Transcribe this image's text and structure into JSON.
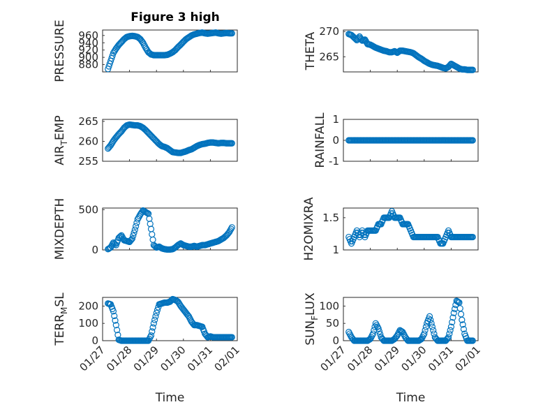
{
  "figure_title": "Figure 3 high",
  "colors": {
    "marker": "#0072BD",
    "axis": "#262626",
    "grid": "#d9d9d9"
  },
  "chart_data": [
    {
      "id": "pressure",
      "type": "scatter",
      "title": "Figure 3 high",
      "ylabel": {
        "main": "PRESSURE",
        "sub": "",
        "rest": ""
      },
      "ylim": [
        860,
        975
      ],
      "yticks": [
        880,
        900,
        920,
        940,
        960
      ],
      "xlim": [
        0,
        5
      ],
      "xticks": [
        0,
        1,
        2,
        3,
        4,
        5
      ],
      "xlabel": "",
      "x": [
        0.2,
        0.3,
        0.4,
        0.5,
        0.6,
        0.7,
        0.8,
        0.9,
        1.0,
        1.1,
        1.2,
        1.3,
        1.4,
        1.5,
        1.6,
        1.7,
        1.8,
        1.9,
        2.0,
        2.1,
        2.2,
        2.3,
        2.4,
        2.5,
        2.6,
        2.7,
        2.8,
        2.9,
        3.0,
        3.1,
        3.2,
        3.3,
        3.4,
        3.5,
        3.6,
        3.7,
        3.8,
        3.9,
        4.0,
        4.1,
        4.2,
        4.3,
        4.4,
        4.5,
        4.6,
        4.7,
        4.8
      ],
      "y": [
        868,
        890,
        912,
        924,
        934,
        942,
        950,
        956,
        958,
        959,
        958,
        956,
        950,
        940,
        926,
        914,
        908,
        906,
        906,
        906,
        906,
        906,
        907,
        910,
        914,
        920,
        928,
        935,
        943,
        950,
        955,
        960,
        963,
        965,
        967,
        968,
        966,
        965,
        966,
        967,
        968,
        966,
        965,
        966,
        967,
        966,
        966
      ]
    },
    {
      "id": "theta",
      "type": "scatter",
      "title": "",
      "ylabel": {
        "main": "THETA",
        "sub": "",
        "rest": ""
      },
      "ylim": [
        262,
        270.3
      ],
      "yticks": [
        265,
        270
      ],
      "xlim": [
        0,
        5
      ],
      "xticks": [
        0,
        1,
        2,
        3,
        4,
        5
      ],
      "xlabel": "",
      "x": [
        0.2,
        0.3,
        0.4,
        0.5,
        0.6,
        0.7,
        0.8,
        0.9,
        1.0,
        1.1,
        1.2,
        1.3,
        1.4,
        1.5,
        1.6,
        1.7,
        1.8,
        1.9,
        2.0,
        2.1,
        2.2,
        2.3,
        2.4,
        2.5,
        2.6,
        2.7,
        2.8,
        2.9,
        3.0,
        3.1,
        3.2,
        3.3,
        3.4,
        3.5,
        3.6,
        3.7,
        3.8,
        3.9,
        4.0,
        4.1,
        4.2,
        4.3,
        4.4,
        4.5,
        4.6,
        4.7,
        4.8
      ],
      "y": [
        269.5,
        269.3,
        268.8,
        268.3,
        269.0,
        268.2,
        268.4,
        267.5,
        267.4,
        267.1,
        266.8,
        266.6,
        266.4,
        266.2,
        266.1,
        265.9,
        265.9,
        266.1,
        265.8,
        266.2,
        266.2,
        266.1,
        266.0,
        265.9,
        265.7,
        265.3,
        264.9,
        264.6,
        264.2,
        263.9,
        263.6,
        263.4,
        263.3,
        263.2,
        263.0,
        262.8,
        262.7,
        263.0,
        263.6,
        263.3,
        263.0,
        262.7,
        262.5,
        262.5,
        262.4,
        262.4,
        262.4
      ]
    },
    {
      "id": "air_temp",
      "type": "scatter",
      "title": "",
      "ylabel": {
        "main": "AIR",
        "sub": "T",
        "rest": "EMP"
      },
      "ylim": [
        255,
        265.5
      ],
      "yticks": [
        255,
        260,
        265
      ],
      "xlim": [
        0,
        5
      ],
      "xticks": [
        0,
        1,
        2,
        3,
        4,
        5
      ],
      "xlabel": "",
      "x": [
        0.2,
        0.3,
        0.4,
        0.5,
        0.6,
        0.7,
        0.8,
        0.9,
        1.0,
        1.1,
        1.2,
        1.3,
        1.4,
        1.5,
        1.6,
        1.7,
        1.8,
        1.9,
        2.0,
        2.1,
        2.2,
        2.3,
        2.4,
        2.5,
        2.6,
        2.7,
        2.8,
        2.9,
        3.0,
        3.1,
        3.2,
        3.3,
        3.4,
        3.5,
        3.6,
        3.7,
        3.8,
        3.9,
        4.0,
        4.1,
        4.2,
        4.3,
        4.4,
        4.5,
        4.6,
        4.7,
        4.8
      ],
      "y": [
        258.2,
        259.0,
        260.1,
        261.0,
        261.8,
        262.5,
        263.4,
        264.0,
        264.2,
        264.1,
        264.0,
        264.0,
        263.8,
        263.4,
        262.8,
        262.1,
        261.4,
        260.7,
        260.0,
        259.3,
        258.8,
        258.6,
        258.3,
        257.8,
        257.3,
        257.2,
        257.1,
        257.1,
        257.3,
        257.5,
        257.8,
        258.0,
        258.4,
        258.8,
        259.1,
        259.3,
        259.4,
        259.6,
        259.7,
        259.7,
        259.6,
        259.5,
        259.6,
        259.6,
        259.5,
        259.5,
        259.5
      ]
    },
    {
      "id": "rainfall",
      "type": "scatter",
      "title": "",
      "ylabel": {
        "main": "RAINFALL",
        "sub": "",
        "rest": ""
      },
      "ylim": [
        -1,
        1
      ],
      "yticks": [
        -1,
        0,
        1
      ],
      "xlim": [
        0,
        5
      ],
      "xticks": [
        0,
        1,
        2,
        3,
        4,
        5
      ],
      "xlabel": "",
      "x": [
        0.2,
        0.3,
        0.4,
        0.5,
        0.6,
        0.7,
        0.8,
        0.9,
        1.0,
        1.1,
        1.2,
        1.3,
        1.4,
        1.5,
        1.6,
        1.7,
        1.8,
        1.9,
        2.0,
        2.1,
        2.2,
        2.3,
        2.4,
        2.5,
        2.6,
        2.7,
        2.8,
        2.9,
        3.0,
        3.1,
        3.2,
        3.3,
        3.4,
        3.5,
        3.6,
        3.7,
        3.8,
        3.9,
        4.0,
        4.1,
        4.2,
        4.3,
        4.4,
        4.5,
        4.6,
        4.7,
        4.8
      ],
      "y": [
        0,
        0,
        0,
        0,
        0,
        0,
        0,
        0,
        0,
        0,
        0,
        0,
        0,
        0,
        0,
        0,
        0,
        0,
        0,
        0,
        0,
        0,
        0,
        0,
        0,
        0,
        0,
        0,
        0,
        0,
        0,
        0,
        0,
        0,
        0,
        0,
        0,
        0,
        0,
        0,
        0,
        0,
        0,
        0,
        0,
        0,
        0
      ]
    },
    {
      "id": "mixdepth",
      "type": "scatter",
      "title": "",
      "ylabel": {
        "main": "MIXDEPTH",
        "sub": "",
        "rest": ""
      },
      "ylim": [
        0,
        520
      ],
      "yticks": [
        0,
        500
      ],
      "xlim": [
        0,
        5
      ],
      "xticks": [
        0,
        1,
        2,
        3,
        4,
        5
      ],
      "xlabel": "",
      "x": [
        0.2,
        0.3,
        0.4,
        0.5,
        0.6,
        0.7,
        0.8,
        0.9,
        1.0,
        1.1,
        1.2,
        1.3,
        1.4,
        1.5,
        1.6,
        1.7,
        1.8,
        1.9,
        2.0,
        2.1,
        2.2,
        2.3,
        2.4,
        2.5,
        2.6,
        2.7,
        2.8,
        2.9,
        3.0,
        3.1,
        3.2,
        3.3,
        3.4,
        3.5,
        3.6,
        3.7,
        3.8,
        3.9,
        4.0,
        4.1,
        4.2,
        4.3,
        4.4,
        4.5,
        4.6,
        4.7,
        4.8
      ],
      "y": [
        10,
        30,
        90,
        60,
        150,
        180,
        120,
        110,
        100,
        140,
        250,
        380,
        440,
        490,
        470,
        450,
        260,
        60,
        30,
        40,
        20,
        10,
        5,
        5,
        10,
        30,
        60,
        80,
        60,
        50,
        40,
        40,
        50,
        40,
        50,
        60,
        60,
        70,
        80,
        90,
        100,
        110,
        130,
        150,
        180,
        220,
        280
      ]
    },
    {
      "id": "h2omixra",
      "type": "scatter",
      "title": "",
      "ylabel": {
        "main": "H2OMIXRA",
        "sub": "",
        "rest": ""
      },
      "ylim": [
        1,
        1.65
      ],
      "yticks": [
        1,
        1.5
      ],
      "xlim": [
        0,
        5
      ],
      "xticks": [
        0,
        1,
        2,
        3,
        4,
        5
      ],
      "xlabel": "",
      "x": [
        0.2,
        0.3,
        0.4,
        0.5,
        0.6,
        0.7,
        0.8,
        0.9,
        1.0,
        1.1,
        1.2,
        1.3,
        1.4,
        1.5,
        1.6,
        1.7,
        1.8,
        1.9,
        2.0,
        2.1,
        2.2,
        2.3,
        2.4,
        2.5,
        2.6,
        2.7,
        2.8,
        2.9,
        3.0,
        3.1,
        3.2,
        3.3,
        3.4,
        3.5,
        3.6,
        3.7,
        3.8,
        3.9,
        4.0,
        4.1,
        4.2,
        4.3,
        4.4,
        4.5,
        4.6,
        4.7,
        4.8
      ],
      "y": [
        1.2,
        1.1,
        1.2,
        1.3,
        1.2,
        1.3,
        1.2,
        1.3,
        1.3,
        1.3,
        1.3,
        1.4,
        1.4,
        1.5,
        1.5,
        1.5,
        1.6,
        1.5,
        1.5,
        1.5,
        1.4,
        1.4,
        1.4,
        1.3,
        1.2,
        1.2,
        1.2,
        1.2,
        1.2,
        1.2,
        1.2,
        1.2,
        1.2,
        1.2,
        1.1,
        1.1,
        1.2,
        1.3,
        1.2,
        1.2,
        1.2,
        1.2,
        1.2,
        1.2,
        1.2,
        1.2,
        1.2
      ]
    },
    {
      "id": "terr_msl",
      "type": "scatter",
      "title": "",
      "ylabel": {
        "main": "TERR",
        "sub": "M",
        "rest": "SL"
      },
      "ylim": [
        0,
        250
      ],
      "yticks": [
        0,
        100,
        200
      ],
      "xlim": [
        0,
        5
      ],
      "xticks": [
        0,
        1,
        2,
        3,
        4,
        5
      ],
      "xticklabels": [
        "01/27",
        "01/28",
        "01/29",
        "01/30",
        "01/31",
        "02/01"
      ],
      "xlabel": "Time",
      "x": [
        0.2,
        0.3,
        0.4,
        0.5,
        0.6,
        0.7,
        0.8,
        0.9,
        1.0,
        1.1,
        1.2,
        1.3,
        1.4,
        1.5,
        1.6,
        1.7,
        1.8,
        1.9,
        2.0,
        2.1,
        2.2,
        2.3,
        2.4,
        2.5,
        2.6,
        2.7,
        2.8,
        2.9,
        3.0,
        3.1,
        3.2,
        3.3,
        3.4,
        3.5,
        3.6,
        3.7,
        3.8,
        3.9,
        4.0,
        4.1,
        4.2,
        4.3,
        4.4,
        4.5,
        4.6,
        4.7,
        4.8
      ],
      "y": [
        215,
        210,
        170,
        90,
        5,
        0,
        0,
        0,
        0,
        0,
        0,
        0,
        0,
        0,
        0,
        0,
        30,
        100,
        160,
        210,
        215,
        220,
        220,
        225,
        240,
        235,
        225,
        200,
        180,
        160,
        140,
        110,
        90,
        90,
        85,
        80,
        40,
        20,
        25,
        20,
        20,
        20,
        20,
        20,
        20,
        20,
        20
      ]
    },
    {
      "id": "sun_flux",
      "type": "scatter",
      "title": "",
      "ylabel": {
        "main": "SUN",
        "sub": "F",
        "rest": "LUX"
      },
      "ylim": [
        0,
        125
      ],
      "yticks": [
        0,
        50,
        100
      ],
      "xlim": [
        0,
        5
      ],
      "xticks": [
        0,
        1,
        2,
        3,
        4,
        5
      ],
      "xticklabels": [
        "01/27",
        "01/28",
        "01/29",
        "01/30",
        "01/31",
        "02/01"
      ],
      "xlabel": "Time",
      "x": [
        0.2,
        0.3,
        0.4,
        0.5,
        0.6,
        0.7,
        0.8,
        0.9,
        1.0,
        1.1,
        1.2,
        1.3,
        1.4,
        1.5,
        1.6,
        1.7,
        1.8,
        1.9,
        2.0,
        2.1,
        2.2,
        2.3,
        2.4,
        2.5,
        2.6,
        2.7,
        2.8,
        2.9,
        3.0,
        3.1,
        3.2,
        3.3,
        3.4,
        3.5,
        3.6,
        3.7,
        3.8,
        3.9,
        4.0,
        4.1,
        4.2,
        4.3,
        4.4,
        4.5,
        4.6,
        4.7,
        4.8
      ],
      "y": [
        25,
        10,
        0,
        0,
        0,
        0,
        0,
        0,
        5,
        20,
        50,
        35,
        10,
        0,
        0,
        0,
        0,
        5,
        15,
        30,
        25,
        10,
        0,
        0,
        0,
        0,
        0,
        5,
        20,
        50,
        70,
        40,
        10,
        0,
        0,
        0,
        0,
        10,
        40,
        80,
        115,
        110,
        60,
        20,
        0,
        0,
        0
      ]
    }
  ]
}
